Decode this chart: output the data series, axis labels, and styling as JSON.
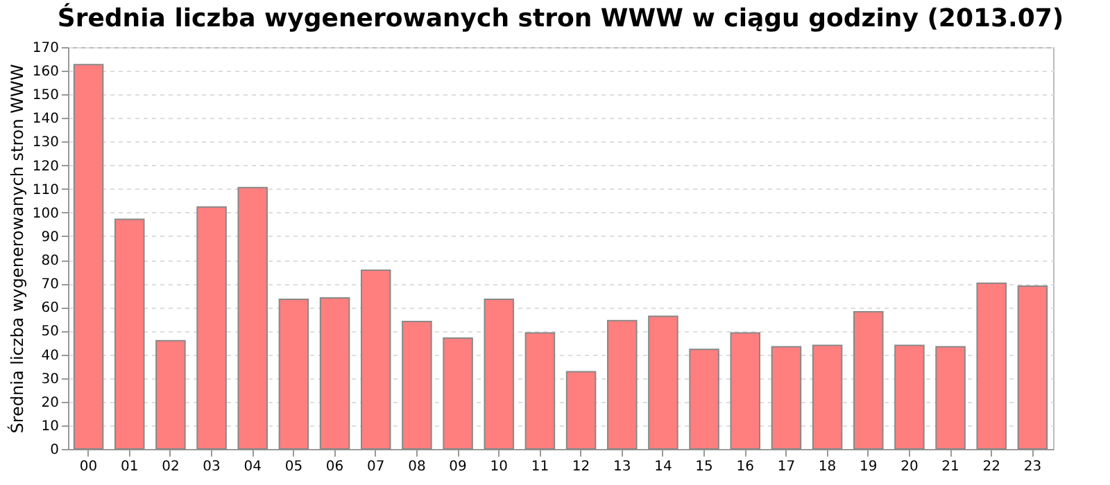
{
  "chart_data": {
    "type": "bar",
    "title": "Średnia liczba wygenerowanych stron WWW w ciągu godziny (2013.07)",
    "ylabel": "Średnia liczba wygenerowanych stron WWW",
    "categories": [
      "00",
      "01",
      "02",
      "03",
      "04",
      "05",
      "06",
      "07",
      "08",
      "09",
      "10",
      "11",
      "12",
      "13",
      "14",
      "15",
      "16",
      "17",
      "18",
      "19",
      "20",
      "21",
      "22",
      "23"
    ],
    "values": [
      162.6,
      97.2,
      45.8,
      102.4,
      110.6,
      63.3,
      63.9,
      75.6,
      53.9,
      46.9,
      63.3,
      49.1,
      32.7,
      54.3,
      56.1,
      42.1,
      49.1,
      43.2,
      43.8,
      58.0,
      43.8,
      43.2,
      70.1,
      68.9
    ],
    "color": "#ff7f7f",
    "ylim": [
      0,
      170
    ],
    "yticks": [
      0,
      10,
      20,
      30,
      40,
      50,
      60,
      70,
      80,
      90,
      100,
      110,
      120,
      130,
      140,
      150,
      160,
      170
    ],
    "grid": "y"
  }
}
